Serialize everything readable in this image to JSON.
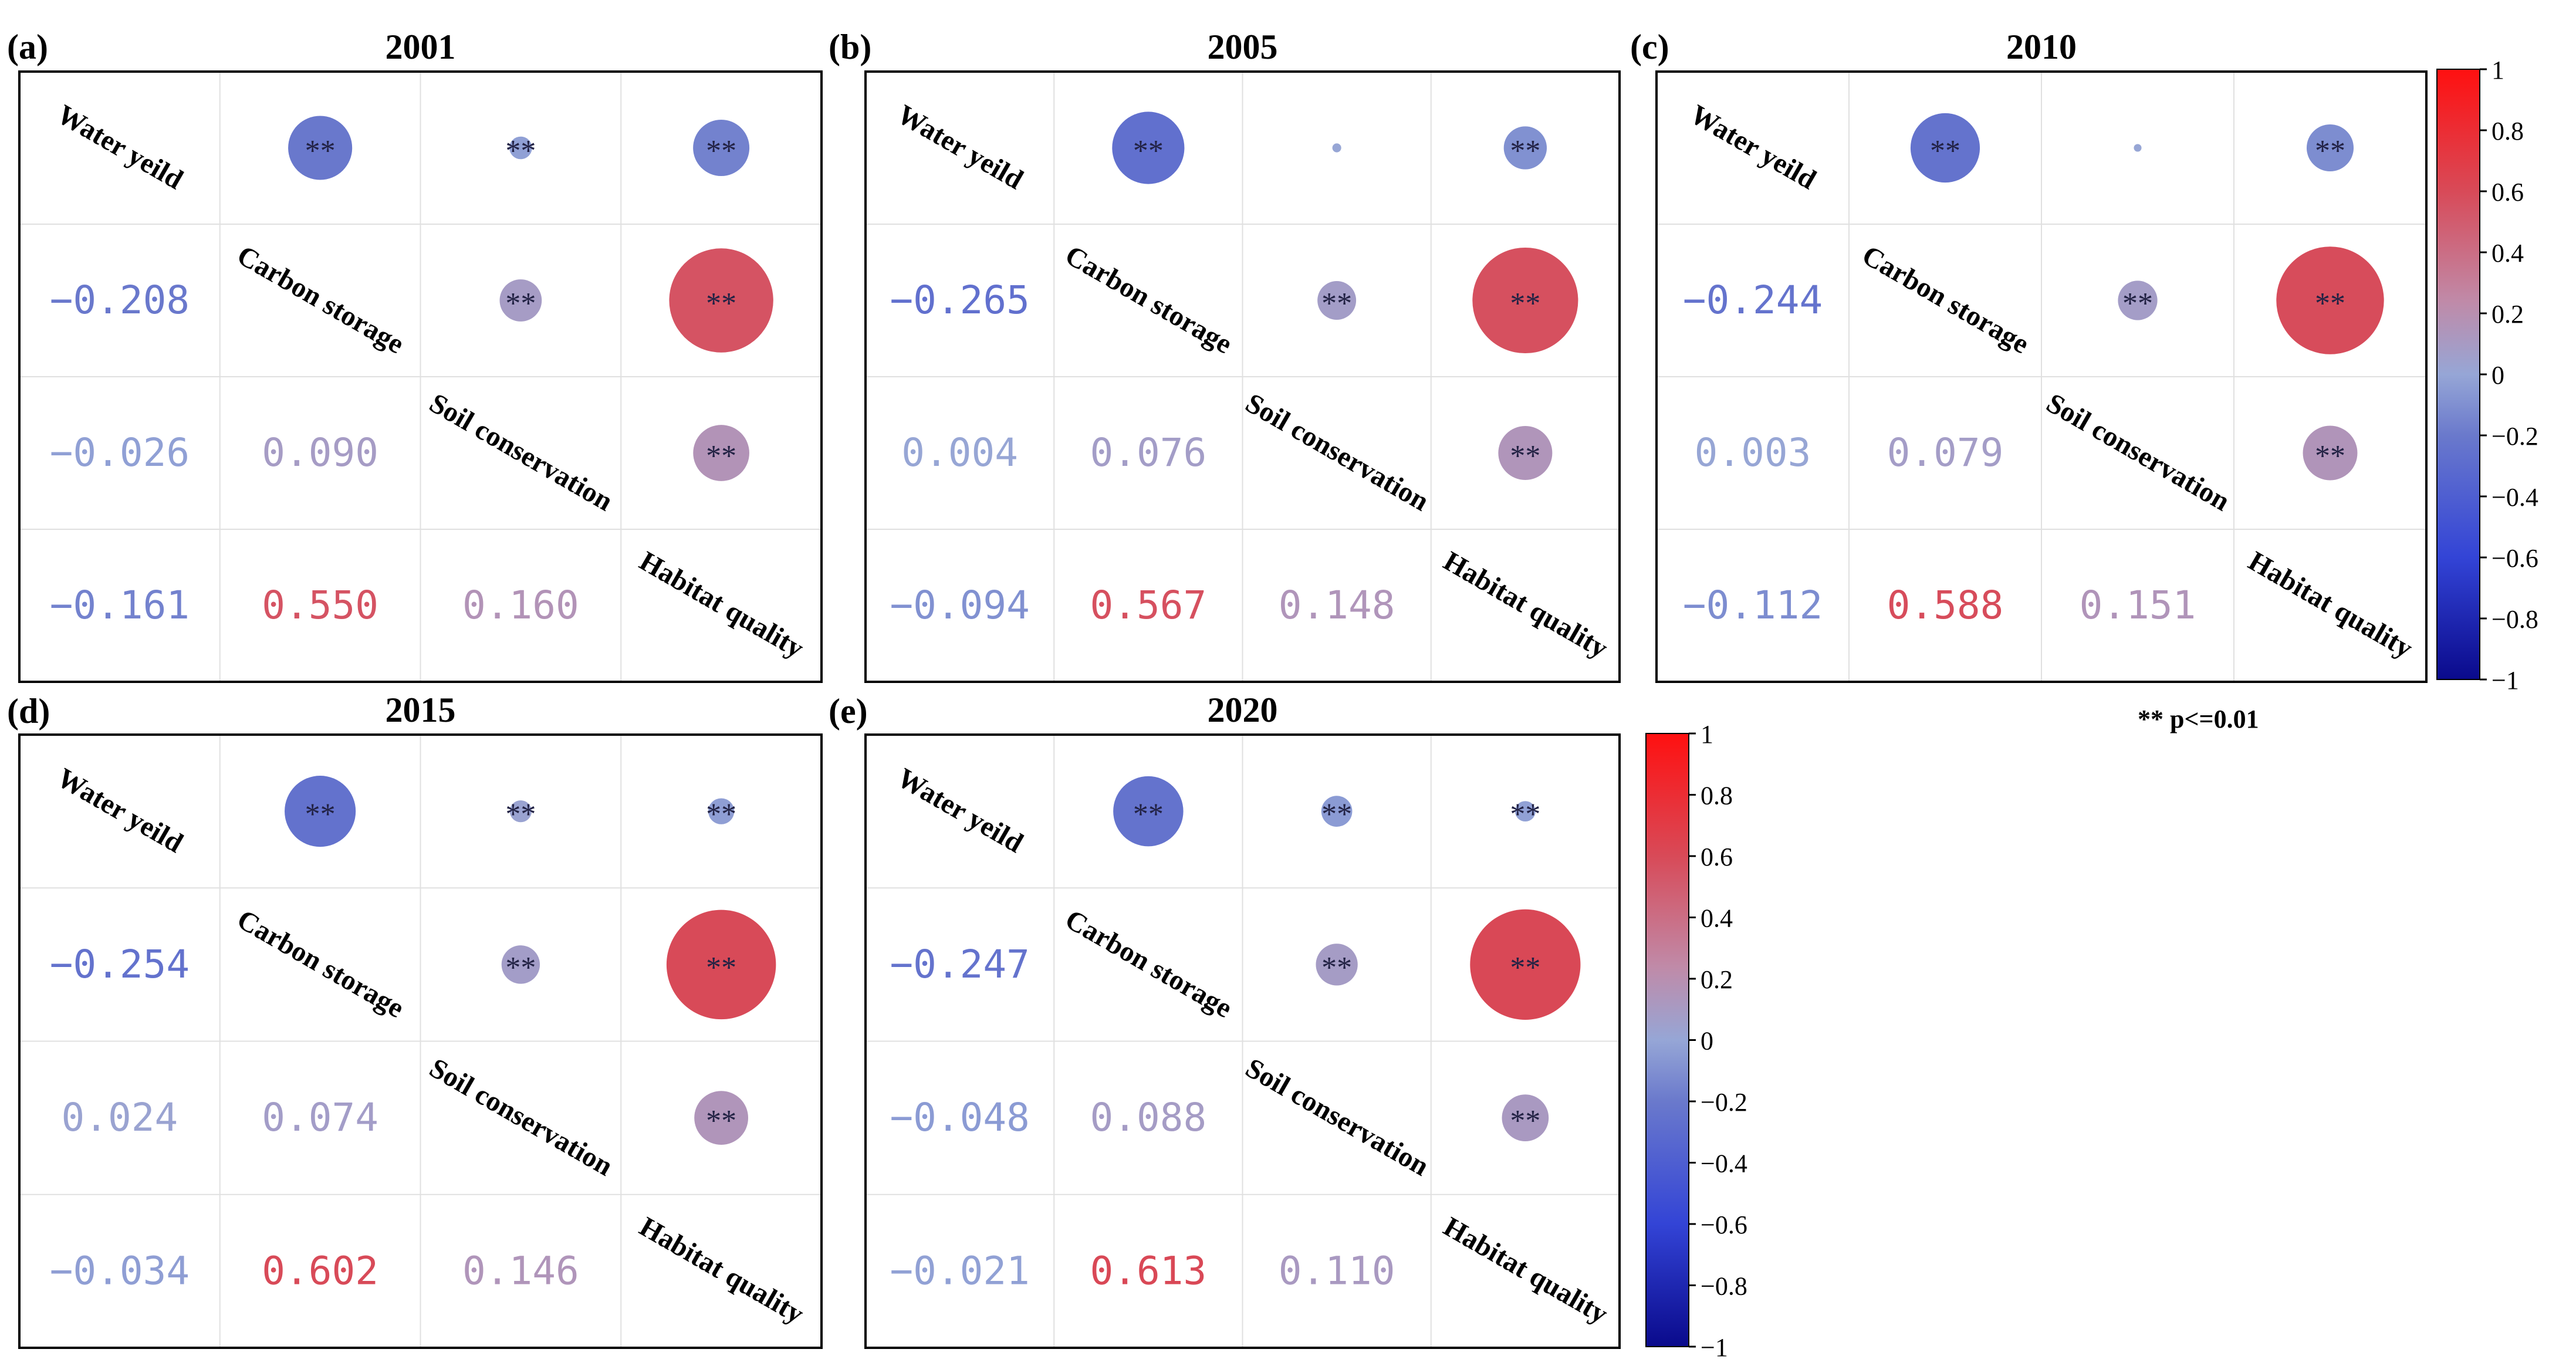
{
  "variables": [
    "Water yeild",
    "Carbon storage",
    "Soil conservation",
    "Habitat quality"
  ],
  "significance_marker": "**",
  "legend_note": "** p<=0.01",
  "colorbar": {
    "ticks": [
      "1",
      "0.8",
      "0.6",
      "0.4",
      "0.2",
      "0",
      "−0.2",
      "−0.4",
      "−0.6",
      "−0.8",
      "−1"
    ],
    "stops": [
      "#0a0a8c",
      "#3344d6",
      "#6a79cc",
      "#96a6d6",
      "#c08aa8",
      "#d84a58",
      "#ff1010"
    ]
  },
  "chart_data": [
    {
      "type": "heatmap",
      "panel": "(a)",
      "title": "2001",
      "labels": [
        "Water yeild",
        "Carbon storage",
        "Soil conservation",
        "Habitat quality"
      ],
      "lower_text": [
        [
          "−0.208"
        ],
        [
          "−0.026",
          "0.090"
        ],
        [
          "−0.161",
          "0.550",
          "0.160"
        ]
      ],
      "upper_r": [
        -0.208,
        -0.026,
        -0.161,
        0.09,
        0.55,
        0.16
      ],
      "upper_sig": [
        true,
        true,
        true,
        true,
        true,
        true
      ]
    },
    {
      "type": "heatmap",
      "panel": "(b)",
      "title": "2005",
      "labels": [
        "Water yeild",
        "Carbon storage",
        "Soil conservation",
        "Habitat quality"
      ],
      "lower_text": [
        [
          "−0.265"
        ],
        [
          "0.004",
          "0.076"
        ],
        [
          "−0.094",
          "0.567",
          "0.148"
        ]
      ],
      "upper_r": [
        -0.265,
        0.004,
        -0.094,
        0.076,
        0.567,
        0.148
      ],
      "upper_sig": [
        true,
        false,
        true,
        true,
        true,
        true
      ]
    },
    {
      "type": "heatmap",
      "panel": "(c)",
      "title": "2010",
      "labels": [
        "Water yeild",
        "Carbon storage",
        "Soil conservation",
        "Habitat quality"
      ],
      "lower_text": [
        [
          "−0.244"
        ],
        [
          "0.003",
          "0.079"
        ],
        [
          "−0.112",
          "0.588",
          "0.151"
        ]
      ],
      "upper_r": [
        -0.244,
        0.003,
        -0.112,
        0.079,
        0.588,
        0.151
      ],
      "upper_sig": [
        true,
        false,
        true,
        true,
        true,
        true
      ]
    },
    {
      "type": "heatmap",
      "panel": "(d)",
      "title": "2015",
      "labels": [
        "Water yeild",
        "Carbon storage",
        "Soil conservation",
        "Habitat quality"
      ],
      "lower_text": [
        [
          "−0.254"
        ],
        [
          "0.024",
          "0.074"
        ],
        [
          "−0.034",
          "0.602",
          "0.146"
        ]
      ],
      "upper_r": [
        -0.254,
        0.024,
        -0.034,
        0.074,
        0.602,
        0.146
      ],
      "upper_sig": [
        true,
        true,
        true,
        true,
        true,
        true
      ]
    },
    {
      "type": "heatmap",
      "panel": "(e)",
      "title": "2020",
      "labels": [
        "Water yeild",
        "Carbon storage",
        "Soil conservation",
        "Habitat quality"
      ],
      "lower_text": [
        [
          "−0.247"
        ],
        [
          "−0.048",
          "0.088"
        ],
        [
          "−0.021",
          "0.613",
          "0.110"
        ]
      ],
      "upper_r": [
        -0.247,
        -0.048,
        -0.021,
        0.088,
        0.613,
        0.11
      ],
      "upper_sig": [
        true,
        true,
        true,
        true,
        true,
        true
      ]
    }
  ]
}
